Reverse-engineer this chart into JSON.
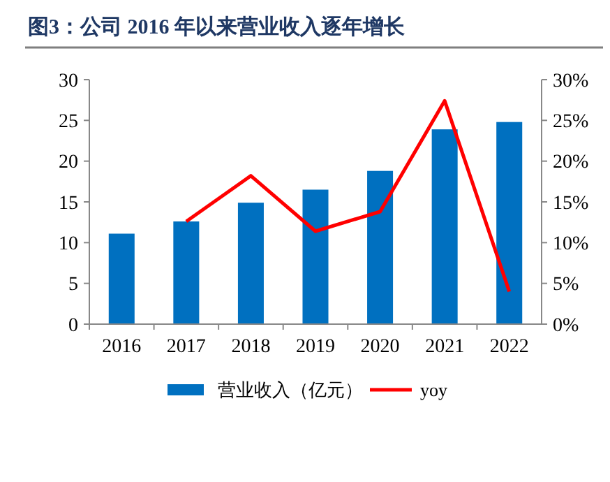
{
  "chart_data": {
    "type": "bar",
    "title": "图3：公司 2016 年以来营业收入逐年增长",
    "categories": [
      "2016",
      "2017",
      "2018",
      "2019",
      "2020",
      "2021",
      "2022"
    ],
    "series": [
      {
        "name": "营业收入（亿元）",
        "color": "#0070c0",
        "values": [
          11.1,
          12.6,
          14.9,
          16.5,
          18.8,
          23.9,
          24.8
        ]
      },
      {
        "name": "yoy",
        "type": "line",
        "axis": "y2",
        "color": "#ff0000",
        "values": [
          null,
          12.6,
          18.2,
          11.4,
          13.8,
          27.4,
          4.0
        ]
      }
    ],
    "ylim": [
      0,
      30
    ],
    "yticks": [
      0,
      5,
      10,
      15,
      20,
      25,
      30
    ],
    "y2lim": [
      0,
      30
    ],
    "y2ticks": [
      {
        "value": 0,
        "label": "0%"
      },
      {
        "value": 5,
        "label": "5%"
      },
      {
        "value": 10,
        "label": "10%"
      },
      {
        "value": 15,
        "label": "15%"
      },
      {
        "value": 20,
        "label": "20%"
      },
      {
        "value": 25,
        "label": "25%"
      },
      {
        "value": 30,
        "label": "30%"
      }
    ],
    "grid": false,
    "legend": "bottom",
    "marker": "none",
    "line_style": "solid"
  }
}
